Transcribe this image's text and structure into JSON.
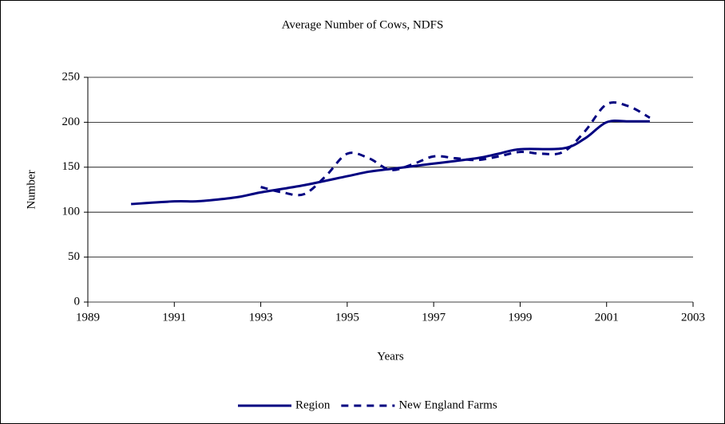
{
  "chart_data": {
    "type": "line",
    "title": "Average  Number of Cows, NDFS",
    "xlabel": "Years",
    "ylabel": "Number",
    "xlim": [
      1989,
      2003
    ],
    "xticks": [
      1989,
      1991,
      1993,
      1995,
      1997,
      1999,
      2001,
      2003
    ],
    "ylim": [
      0,
      250
    ],
    "yticks": [
      0,
      50,
      100,
      150,
      200,
      250
    ],
    "grid": true,
    "legend": "bottom",
    "series": [
      {
        "name": "Region",
        "color": "#000080",
        "dash": false,
        "x": [
          1990,
          1991,
          1991.5,
          1992,
          1992.5,
          1993,
          1994,
          1995,
          1995.5,
          1996,
          1997,
          1998,
          1998.5,
          1999,
          2000,
          2000.5,
          2001,
          2001.5,
          2002
        ],
        "values": [
          109,
          112,
          112,
          114,
          117,
          122,
          130,
          140,
          145,
          148,
          154,
          160,
          165,
          170,
          171,
          182,
          200,
          201,
          201
        ]
      },
      {
        "name": "New England Farms",
        "color": "#000080",
        "dash": true,
        "x": [
          1993,
          1993.5,
          1994,
          1994.5,
          1995,
          1995.5,
          1996,
          1996.5,
          1997,
          1997.5,
          1998,
          1998.5,
          1999,
          1999.5,
          2000,
          2000.5,
          2001,
          2001.5,
          2002
        ],
        "values": [
          128,
          122,
          120,
          140,
          165,
          160,
          147,
          153,
          162,
          160,
          158,
          162,
          167,
          165,
          167,
          190,
          220,
          218,
          205
        ]
      }
    ]
  }
}
